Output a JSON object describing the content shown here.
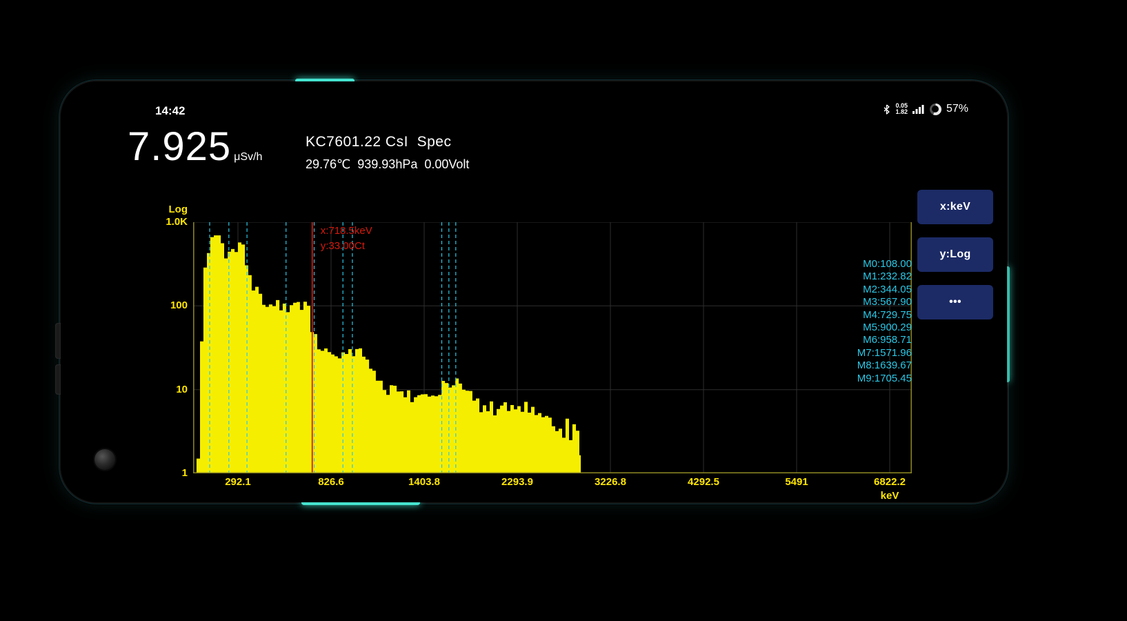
{
  "status_bar": {
    "time": "14:42",
    "net_up": "0.05",
    "net_down": "1.82",
    "battery": "57%"
  },
  "header": {
    "dose_value": "7.925",
    "dose_unit": "μSv/h",
    "device_title": "KC7601.22 CsI  Spec",
    "env_readings": "29.76℃  939.93hPa  0.00Volt"
  },
  "buttons": [
    {
      "label": "x:keV"
    },
    {
      "label": "y:Log"
    },
    {
      "label": "•••"
    }
  ],
  "cursor": {
    "kev": 718.5,
    "ct": 33.0,
    "x_label": "x:718.5keV",
    "y_label": "y:33.00Ct"
  },
  "colors": {
    "spectrum_yellow": "#f6ee00",
    "axis_line": "#8e8a23",
    "grid_line": "#2e2e2e",
    "axis_label": "#ffe600",
    "marker_cyan": "#2bc8e6",
    "cursor_red": "#d61a0c",
    "button_bg": "#1c2b66"
  },
  "chart_data": {
    "type": "area",
    "title": "KC7601.22 CsI Spec",
    "xlabel": "keV",
    "ylabel": "Log",
    "x_unit": "keV",
    "y_scale": "log",
    "ylim": [
      1,
      1000
    ],
    "grid": true,
    "x_ticks": [
      292.1,
      826.6,
      1403.8,
      2293.9,
      3226.8,
      4292.5,
      5491,
      6822.2
    ],
    "x_tick_labels": [
      "292.1",
      "826.6",
      "1403.8",
      "2293.9",
      "3226.8",
      "4292.5",
      "5491",
      "6822.2"
    ],
    "y_ticks": [
      {
        "label": "1.0K",
        "value": 1000
      },
      {
        "label": "100",
        "value": 100
      },
      {
        "label": "10",
        "value": 10
      },
      {
        "label": "1",
        "value": 1
      }
    ],
    "markers": [
      {
        "label": "M0:108.00",
        "kev": 108.0
      },
      {
        "label": "M1:232.82",
        "kev": 232.82
      },
      {
        "label": "M2:344.05",
        "kev": 344.05
      },
      {
        "label": "M3:567.90",
        "kev": 567.9
      },
      {
        "label": "M4:729.75",
        "kev": 729.75
      },
      {
        "label": "M5:900.29",
        "kev": 900.29
      },
      {
        "label": "M6:958.71",
        "kev": 958.71
      },
      {
        "label": "M7:1571.96",
        "kev": 1571.96
      },
      {
        "label": "M8:1639.67",
        "kev": 1639.67
      },
      {
        "label": "M9:1705.45",
        "kev": 1705.45
      }
    ],
    "spectrum": [
      [
        22,
        1.5
      ],
      [
        45,
        45
      ],
      [
        67,
        260
      ],
      [
        90,
        500
      ],
      [
        112,
        650
      ],
      [
        135,
        700
      ],
      [
        157,
        620
      ],
      [
        180,
        480
      ],
      [
        202,
        430
      ],
      [
        225,
        455
      ],
      [
        247,
        420
      ],
      [
        270,
        455
      ],
      [
        292,
        510
      ],
      [
        312,
        460
      ],
      [
        332,
        310
      ],
      [
        351,
        225
      ],
      [
        371,
        172
      ],
      [
        391,
        148
      ],
      [
        411,
        135
      ],
      [
        431,
        122
      ],
      [
        450,
        113
      ],
      [
        470,
        109
      ],
      [
        490,
        103
      ],
      [
        510,
        111
      ],
      [
        530,
        99
      ],
      [
        549,
        95
      ],
      [
        569,
        101
      ],
      [
        589,
        96
      ],
      [
        609,
        104
      ],
      [
        629,
        109
      ],
      [
        648,
        95
      ],
      [
        668,
        100
      ],
      [
        688,
        90
      ],
      [
        708,
        58
      ],
      [
        728,
        42
      ],
      [
        747,
        34
      ],
      [
        767,
        30
      ],
      [
        787,
        28
      ],
      [
        807,
        26
      ],
      [
        827,
        25
      ],
      [
        848,
        24
      ],
      [
        869,
        26
      ],
      [
        891,
        29
      ],
      [
        912,
        27
      ],
      [
        933,
        33
      ],
      [
        955,
        29
      ],
      [
        976,
        34
      ],
      [
        998,
        28
      ],
      [
        1019,
        30
      ],
      [
        1040,
        24
      ],
      [
        1062,
        20
      ],
      [
        1083,
        17
      ],
      [
        1104,
        14
      ],
      [
        1126,
        12.5
      ],
      [
        1147,
        11.5
      ],
      [
        1169,
        10.5
      ],
      [
        1190,
        11
      ],
      [
        1211,
        9.5
      ],
      [
        1233,
        9
      ],
      [
        1254,
        10
      ],
      [
        1276,
        8.5
      ],
      [
        1297,
        9.5
      ],
      [
        1318,
        8.5
      ],
      [
        1340,
        9
      ],
      [
        1361,
        8
      ],
      [
        1382,
        9
      ],
      [
        1404,
        8.5
      ],
      [
        1437,
        9
      ],
      [
        1470,
        10
      ],
      [
        1503,
        9.5
      ],
      [
        1536,
        10.5
      ],
      [
        1569,
        12
      ],
      [
        1602,
        13.5
      ],
      [
        1635,
        12.5
      ],
      [
        1668,
        11
      ],
      [
        1701,
        13
      ],
      [
        1734,
        13.5
      ],
      [
        1766,
        10.5
      ],
      [
        1799,
        9.5
      ],
      [
        1832,
        8.5
      ],
      [
        1865,
        7.5
      ],
      [
        1898,
        7
      ],
      [
        1931,
        6.5
      ],
      [
        1964,
        7
      ],
      [
        1997,
        6
      ],
      [
        2030,
        6.5
      ],
      [
        2063,
        5.5
      ],
      [
        2096,
        7
      ],
      [
        2129,
        6
      ],
      [
        2162,
        6.5
      ],
      [
        2195,
        5.5
      ],
      [
        2228,
        6
      ],
      [
        2261,
        7
      ],
      [
        2294,
        5.5
      ],
      [
        2328,
        6.5
      ],
      [
        2363,
        7.5
      ],
      [
        2398,
        5.5
      ],
      [
        2432,
        7
      ],
      [
        2467,
        5
      ],
      [
        2501,
        6
      ],
      [
        2536,
        4.5
      ],
      [
        2570,
        5
      ],
      [
        2605,
        4
      ],
      [
        2639,
        3.5
      ],
      [
        2674,
        3
      ],
      [
        2708,
        4
      ],
      [
        2743,
        2.5
      ],
      [
        2777,
        4
      ],
      [
        2812,
        2.5
      ],
      [
        2846,
        4
      ],
      [
        2881,
        3
      ],
      [
        2916,
        2
      ],
      [
        2930,
        1.2
      ]
    ]
  }
}
